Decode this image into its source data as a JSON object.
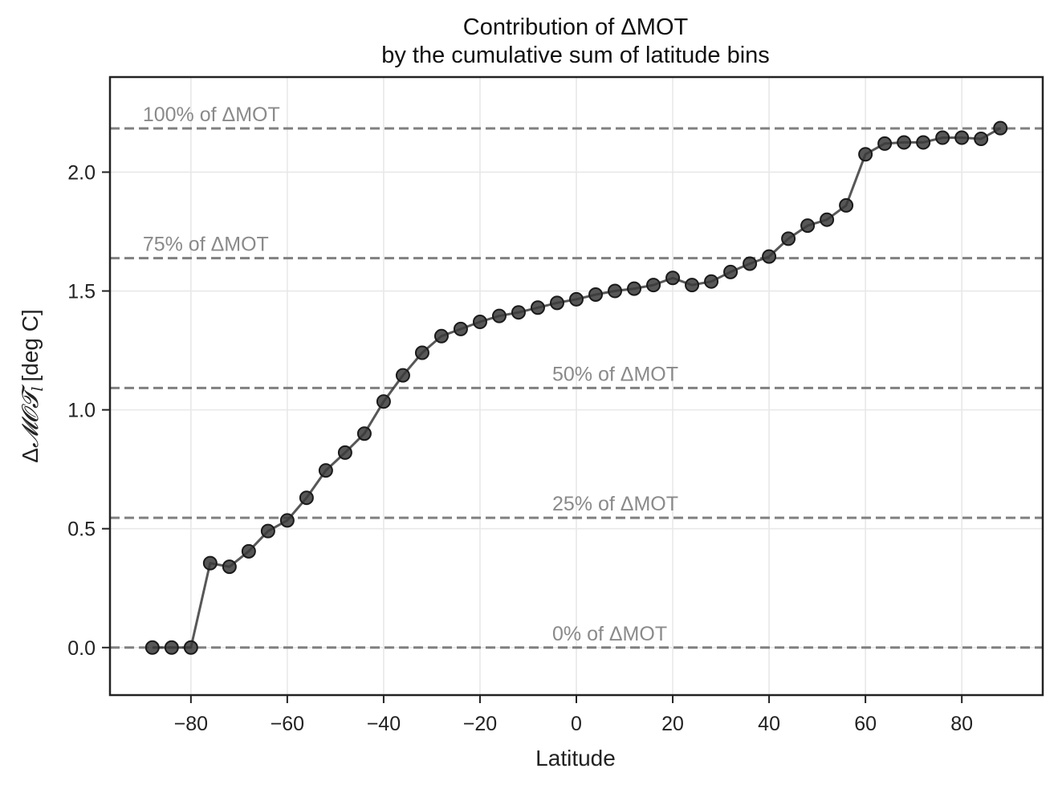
{
  "chart_data": {
    "type": "line",
    "title_lines": [
      "Contribution of ΔMOT",
      "by the cumulative sum of latitude bins"
    ],
    "xlabel": "Latitude",
    "ylabel": {
      "delta": "Δ",
      "math": "𝓜𝓞𝓣",
      "subscript": "l",
      "units": "[deg C]"
    },
    "xlim": [
      -96.8,
      96.8
    ],
    "ylim": [
      -0.2,
      2.4
    ],
    "xticks": [
      -80,
      -60,
      -40,
      -20,
      0,
      20,
      40,
      60,
      80
    ],
    "xtick_labels": [
      "−80",
      "−60",
      "−40",
      "−20",
      "0",
      "20",
      "40",
      "60",
      "80"
    ],
    "yticks": [
      0.0,
      0.5,
      1.0,
      1.5,
      2.0
    ],
    "ytick_labels": [
      "0.0",
      "0.5",
      "1.0",
      "1.5",
      "2.0"
    ],
    "grid": true,
    "line_color": "#3a3a3a",
    "marker_color": "#3a3a3a",
    "reference_color": "#808080",
    "reference_lines": [
      {
        "y": 0.0,
        "label": "0% of ΔMOT",
        "label_x": -5
      },
      {
        "y": 0.546,
        "label": "25% of ΔMOT",
        "label_x": -5
      },
      {
        "y": 1.092,
        "label": "50% of ΔMOT",
        "label_x": -5
      },
      {
        "y": 1.638,
        "label": "75% of ΔMOT",
        "label_x": -90
      },
      {
        "y": 2.184,
        "label": "100% of ΔMOT",
        "label_x": -90
      }
    ],
    "series": [
      {
        "x": [
          -88,
          -84,
          -80,
          -76,
          -72,
          -68,
          -64,
          -60,
          -56,
          -52,
          -48,
          -44,
          -40,
          -36,
          -32,
          -28,
          -24,
          -20,
          -16,
          -12,
          -8,
          -4,
          0,
          4,
          8,
          12,
          16,
          20,
          24,
          28,
          32,
          36,
          40,
          44,
          48,
          52,
          56,
          60,
          64,
          68,
          72,
          76,
          80,
          84,
          88
        ],
        "values": [
          0.0,
          0.0,
          0.0,
          0.355,
          0.34,
          0.405,
          0.49,
          0.535,
          0.63,
          0.745,
          0.82,
          0.9,
          1.035,
          1.145,
          1.24,
          1.31,
          1.34,
          1.37,
          1.395,
          1.41,
          1.43,
          1.45,
          1.465,
          1.485,
          1.5,
          1.51,
          1.525,
          1.555,
          1.525,
          1.54,
          1.58,
          1.615,
          1.645,
          1.72,
          1.775,
          1.8,
          1.86,
          2.075,
          2.12,
          2.125,
          2.125,
          2.145,
          2.145,
          2.14,
          2.185
        ]
      }
    ]
  }
}
